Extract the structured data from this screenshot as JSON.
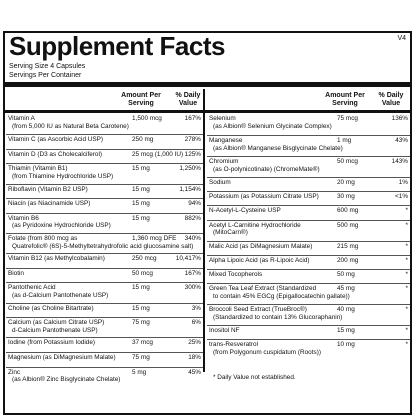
{
  "header": {
    "title": "Supplement Facts",
    "version": "V4",
    "serving_size": "Serving Size 4 Capsules",
    "servings_per_container": "Servings Per Container"
  },
  "columns": {
    "amount": "Amount Per Serving",
    "amount_line1": "Amount Per",
    "amount_line2": "Serving",
    "dv_line1": "% Daily",
    "dv_line2": "Value"
  },
  "left_rows": [
    {
      "name": "Vitamin A",
      "sub": "(from 5,000 IU as Natural Beta Carotene)",
      "amount": "1,500 mcg",
      "dv": "167%"
    },
    {
      "name": "Vitamin C (as Ascorbic Acid USP)",
      "amount": "250 mg",
      "dv": "278%"
    },
    {
      "name": "Vitamin D (D3 as Cholecalciferol)",
      "amount": "25 mcg (1,000 IU)",
      "dv": "125%"
    },
    {
      "name": "Thiamin (Vitamin B1)",
      "sub": "(from Thiamine Hydrochloride USP)",
      "amount": "15 mg",
      "dv": "1,250%"
    },
    {
      "name": "Riboflavin (Vitamin B2 USP)",
      "amount": "15 mg",
      "dv": "1,154%"
    },
    {
      "name": "Niacin (as Niacinamide USP)",
      "amount": "15 mg",
      "dv": "94%"
    },
    {
      "name": "Vitamin B6",
      "sub": "(as Pyridoxine Hydrochloride USP)",
      "amount": "15 mg",
      "dv": "882%"
    },
    {
      "name": "Folate (from 800 mcg as",
      "sub": "Quatrefolic® (6S)-5-Methyltetrahydrofolic acid glucosamine salt)",
      "amount": "1,360 mcg DFE",
      "dv": "340%"
    },
    {
      "name": "Vitamin B12 (as Methylcobalamin)",
      "amount": "250 mcg",
      "dv": "10,417%"
    },
    {
      "name": "Biotin",
      "amount": "50 mcg",
      "dv": "167%"
    },
    {
      "name": "Pantothenic Acid",
      "sub": "(as d-Calcium Pantothenate USP)",
      "amount": "15 mg",
      "dv": "300%"
    },
    {
      "name": "Choline (as Choline Bitartrate)",
      "amount": "15 mg",
      "dv": "3%"
    },
    {
      "name": "Calcium (as Calcium Citrate USP)",
      "sub": "d-Calcium Pantothenate USP)",
      "amount": "75 mg",
      "dv": "6%"
    },
    {
      "name": "Iodine (from Potassium Iodide)",
      "amount": "37 mcg",
      "dv": "25%"
    },
    {
      "name": "Magnesium (as DiMagnesium Malate)",
      "amount": "75 mg",
      "dv": "18%"
    },
    {
      "name": "Zinc",
      "sub": "(as Albion® Zinc Bisglycinate Chelate)",
      "amount": "5 mg",
      "dv": "45%"
    }
  ],
  "right_rows": [
    {
      "name": "Selenium",
      "sub": "(as Albion® Selenium Glycinate Complex)",
      "amount": "75 mcg",
      "dv": "136%"
    },
    {
      "name": "Manganese",
      "sub": "(as Albion® Manganese Bisglycinate Chelate)",
      "amount": "1 mg",
      "dv": "43%"
    },
    {
      "name": "Chromium",
      "sub": "(as O-polynicotinate) (ChromeMate®)",
      "amount": "50 mcg",
      "dv": "143%"
    },
    {
      "name": "Sodium",
      "amount": "20 mg",
      "dv": "1%"
    },
    {
      "name": "Potassium (as Potassium Citrate USP)",
      "amount": "30 mg",
      "dv": "<1%"
    },
    {
      "name": "N-Acetyl-L-Cysteine USP",
      "amount": "600 mg",
      "dv": "*"
    },
    {
      "name": "Acetyl L-Carnitine Hydrochloride",
      "sub": "(MitoCarn®)",
      "amount": "500 mg",
      "dv": "*"
    },
    {
      "name": "Malic Acid (as DiMagnesium Malate)",
      "amount": "215 mg",
      "dv": "*"
    },
    {
      "name": "Alpha Lipoic Acid (as R-Lipoic Acid)",
      "amount": "200 mg",
      "dv": "*"
    },
    {
      "name": "Mixed Tocopherols",
      "amount": "50 mg",
      "dv": "*"
    },
    {
      "name": "Green Tea Leaf Extract (Standardized",
      "sub": "to contain 45% EGCg (Epigallocatechin gallate))",
      "amount": "45 mg",
      "dv": "*"
    },
    {
      "name": "Broccoli Seed Extract (TrueBroc®)",
      "sub": "(Standardized to contain 13% Glucoraphanin)",
      "amount": "40 mg",
      "dv": "*"
    },
    {
      "name": "Inositol NF",
      "amount": "15 mg",
      "dv": "*"
    },
    {
      "name": "trans-Resveratrol",
      "sub": "(from Polygonum cuspidatum (Roots))",
      "amount": "10 mg",
      "dv": "*"
    }
  ],
  "footnote": "* Daily Value not established."
}
